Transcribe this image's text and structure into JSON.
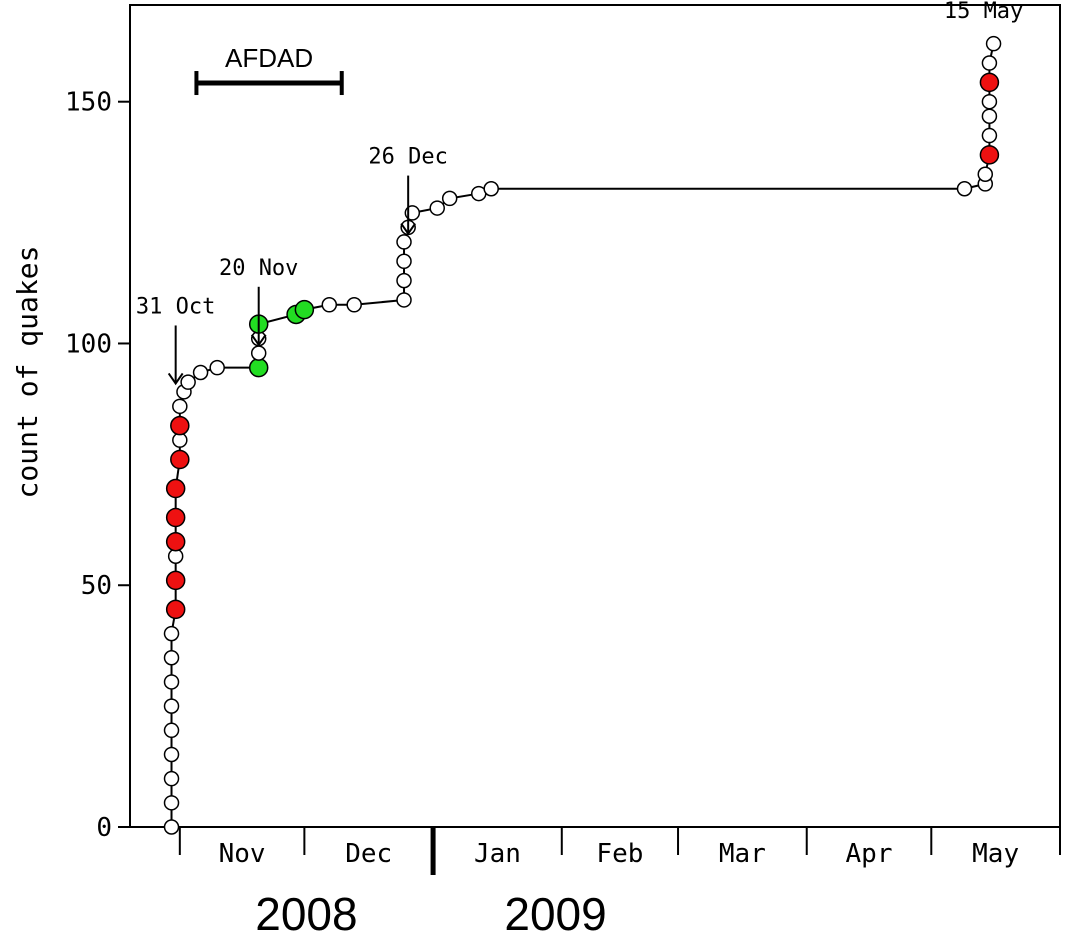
{
  "chart_data": {
    "type": "scatter",
    "title": "",
    "xlabel": "",
    "ylabel": "count of quakes",
    "ylim": [
      0,
      170
    ],
    "yticks": [
      "0",
      "50",
      "100",
      "150"
    ],
    "xlim": [
      "2008-10-20",
      "2009-06-01"
    ],
    "month_labels": [
      "Nov",
      "Dec",
      "Jan",
      "Feb",
      "Mar",
      "Apr",
      "May"
    ],
    "year_labels": [
      "2008",
      "2009"
    ],
    "legend": "none",
    "grid": false,
    "colors": {
      "default": "#ffffff",
      "red": "#ee1111",
      "green": "#22dd22",
      "line": "#000000"
    },
    "series": [
      {
        "points": [
          {
            "x": "2008-10-30",
            "y": 0
          },
          {
            "x": "2008-10-30",
            "y": 5
          },
          {
            "x": "2008-10-30",
            "y": 10
          },
          {
            "x": "2008-10-30",
            "y": 15
          },
          {
            "x": "2008-10-30",
            "y": 20
          },
          {
            "x": "2008-10-30",
            "y": 25
          },
          {
            "x": "2008-10-30",
            "y": 30
          },
          {
            "x": "2008-10-30",
            "y": 35
          },
          {
            "x": "2008-10-30",
            "y": 40
          },
          {
            "x": "2008-10-31",
            "y": 45,
            "color": "red"
          },
          {
            "x": "2008-10-31",
            "y": 51,
            "color": "red"
          },
          {
            "x": "2008-10-31",
            "y": 56
          },
          {
            "x": "2008-10-31",
            "y": 59,
            "color": "red"
          },
          {
            "x": "2008-10-31",
            "y": 64,
            "color": "red"
          },
          {
            "x": "2008-10-31",
            "y": 70,
            "color": "red"
          },
          {
            "x": "2008-11-01",
            "y": 76,
            "color": "red"
          },
          {
            "x": "2008-11-01",
            "y": 80
          },
          {
            "x": "2008-11-01",
            "y": 83,
            "color": "red"
          },
          {
            "x": "2008-11-01",
            "y": 87
          },
          {
            "x": "2008-11-02",
            "y": 90
          },
          {
            "x": "2008-11-03",
            "y": 92
          },
          {
            "x": "2008-11-06",
            "y": 94
          },
          {
            "x": "2008-11-10",
            "y": 95
          },
          {
            "x": "2008-11-20",
            "y": 95,
            "color": "green"
          },
          {
            "x": "2008-11-20",
            "y": 98
          },
          {
            "x": "2008-11-20",
            "y": 101
          },
          {
            "x": "2008-11-20",
            "y": 104,
            "color": "green"
          },
          {
            "x": "2008-11-29",
            "y": 106,
            "color": "green"
          },
          {
            "x": "2008-12-01",
            "y": 107,
            "color": "green"
          },
          {
            "x": "2008-12-07",
            "y": 108
          },
          {
            "x": "2008-12-13",
            "y": 108
          },
          {
            "x": "2008-12-25",
            "y": 109
          },
          {
            "x": "2008-12-25",
            "y": 113
          },
          {
            "x": "2008-12-25",
            "y": 117
          },
          {
            "x": "2008-12-25",
            "y": 121
          },
          {
            "x": "2008-12-26",
            "y": 124
          },
          {
            "x": "2008-12-27",
            "y": 127
          },
          {
            "x": "2009-01-02",
            "y": 128
          },
          {
            "x": "2009-01-05",
            "y": 130
          },
          {
            "x": "2009-01-12",
            "y": 131
          },
          {
            "x": "2009-01-15",
            "y": 132
          },
          {
            "x": "2009-05-09",
            "y": 132
          },
          {
            "x": "2009-05-14",
            "y": 133
          },
          {
            "x": "2009-05-14",
            "y": 135
          },
          {
            "x": "2009-05-15",
            "y": 139,
            "color": "red"
          },
          {
            "x": "2009-05-15",
            "y": 143
          },
          {
            "x": "2009-05-15",
            "y": 147
          },
          {
            "x": "2009-05-15",
            "y": 150
          },
          {
            "x": "2009-05-15",
            "y": 154,
            "color": "red"
          },
          {
            "x": "2009-05-15",
            "y": 158
          },
          {
            "x": "2009-05-16",
            "y": 162
          }
        ]
      }
    ],
    "annotations": [
      {
        "text": "31 Oct",
        "x": "2008-10-31",
        "y": 100
      },
      {
        "text": "20 Nov",
        "x": "2008-11-20",
        "y": 108
      },
      {
        "text": "26 Dec",
        "x": "2008-12-26",
        "y": 131
      },
      {
        "text": "15 May",
        "x": "2009-05-16",
        "y": 164
      },
      {
        "text": "AFDAD",
        "x_start": "2008-11-05",
        "x_end": "2008-12-10",
        "y": 158
      }
    ]
  }
}
